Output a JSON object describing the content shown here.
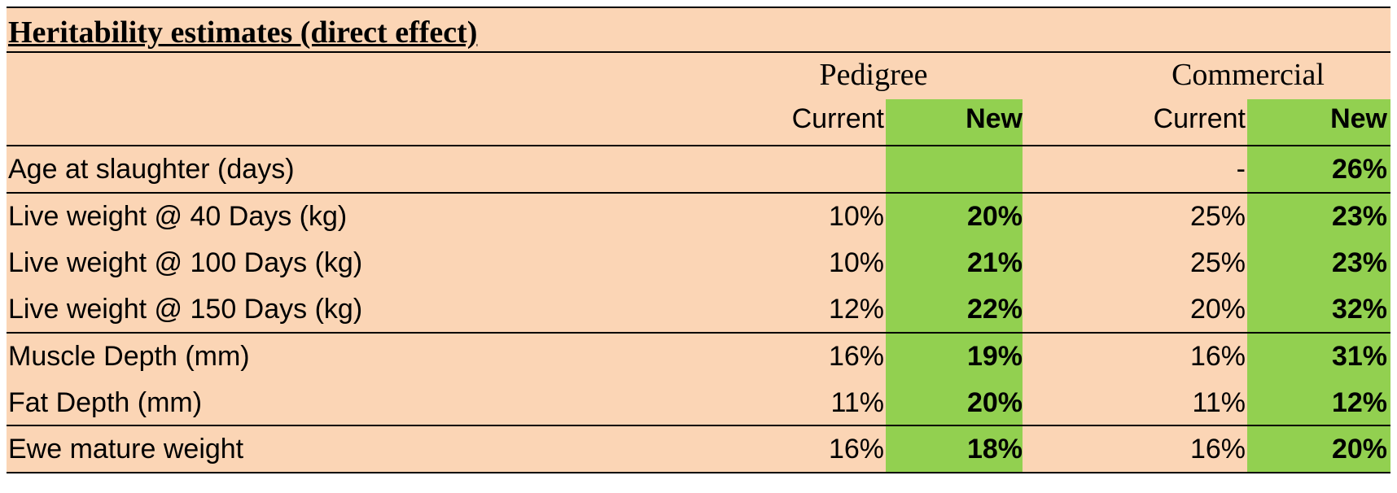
{
  "title": "Heritability estimates (direct effect)",
  "groups": {
    "pedigree": "Pedigree",
    "commercial": "Commercial"
  },
  "subheaders": {
    "ped_current": "Current",
    "ped_new": "New",
    "com_current": "Current",
    "com_new": "New"
  },
  "rows": [
    {
      "label": "Age at slaughter (days)",
      "ped_current": "",
      "ped_new": "",
      "com_current": "-",
      "com_new": "26%"
    },
    {
      "label": "Live weight @ 40 Days (kg)",
      "ped_current": "10%",
      "ped_new": "20%",
      "com_current": "25%",
      "com_new": "23%"
    },
    {
      "label": "Live weight @ 100 Days (kg)",
      "ped_current": "10%",
      "ped_new": "21%",
      "com_current": "25%",
      "com_new": "23%"
    },
    {
      "label": "Live weight @ 150 Days (kg)",
      "ped_current": "12%",
      "ped_new": "22%",
      "com_current": "20%",
      "com_new": "32%"
    },
    {
      "label": "Muscle Depth (mm)",
      "ped_current": "16%",
      "ped_new": "19%",
      "com_current": "16%",
      "com_new": "31%"
    },
    {
      "label": "Fat Depth (mm)",
      "ped_current": "11%",
      "ped_new": "20%",
      "com_current": "11%",
      "com_new": "12%"
    },
    {
      "label": "Ewe mature weight",
      "ped_current": "16%",
      "ped_new": "18%",
      "com_current": "16%",
      "com_new": "20%"
    }
  ],
  "colors": {
    "background": "#fbd5b5",
    "highlight": "#92d050"
  }
}
